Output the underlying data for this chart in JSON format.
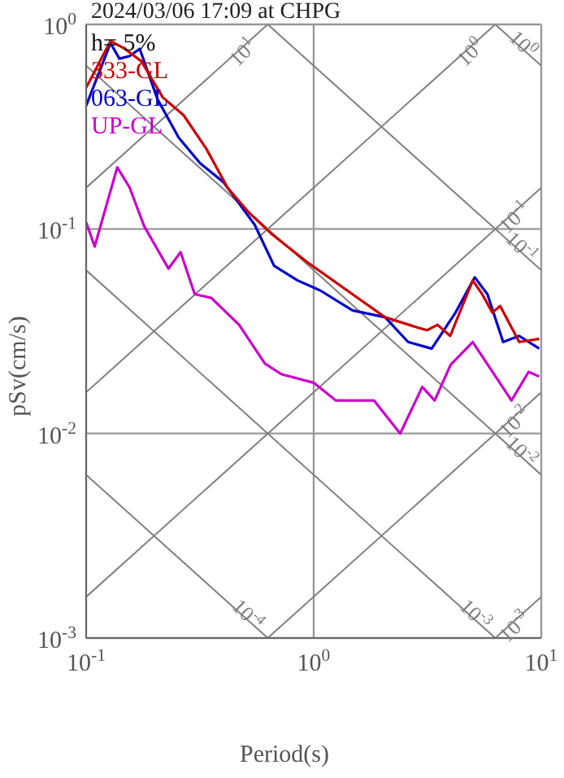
{
  "chart_data": {
    "type": "line",
    "title": "2024/03/06 17:09 at CHPG",
    "xlabel": "Period(s)",
    "ylabel": "pSv(cm/s)",
    "log": "xy",
    "grid": true,
    "legend": "top left",
    "annotations": [
      "h= 5%",
      {
        "text": "10$^{1}$",
        "x": 0.628,
        "y": 1
      },
      {
        "text": "10$^{0}$",
        "x": 6.28,
        "y": 1
      },
      {
        "text": "10$^{-1}$",
        "x": 10,
        "y": 0.159
      },
      {
        "text": "10$^{-2}$",
        "x": 10,
        "y": 0.0159
      },
      {
        "text": "10$^{-3}$",
        "x": 10,
        "y": 0.00159
      },
      {
        "text": "10$^{0}$",
        "x": 10,
        "y": 0.628
      },
      {
        "text": "10$^{-1}$",
        "x": 10,
        "y": 0.0628
      },
      {
        "text": "10$^{-2}$",
        "x": 10,
        "y": 0.00628
      },
      {
        "text": "10$^{-3}$",
        "x": 6.28,
        "y": 0.001
      },
      {
        "text": "10$^{-4}$",
        "x": 0.628,
        "y": 0.001
      }
    ],
    "xlim": [
      0.1,
      10
    ],
    "ylim": [
      0.001,
      1
    ],
    "xticks": [
      {
        "value": 0.1,
        "label": "10$^{-1}$"
      },
      {
        "value": 1,
        "label": "10$^{0}$"
      },
      {
        "value": 10,
        "label": "10$^{1}$"
      }
    ],
    "yticks": [
      {
        "value": 0.001,
        "label": "10$^{-3}$"
      },
      {
        "value": 0.01,
        "label": "10$^{-2}$"
      },
      {
        "value": 0.1,
        "label": "10$^{-1}$"
      },
      {
        "value": 1,
        "label": "10$^{0}$"
      }
    ],
    "series": [
      {
        "name": "333-GL",
        "color": "#cc0000",
        "x": [
          0.1,
          0.128,
          0.148,
          0.175,
          0.217,
          0.268,
          0.337,
          0.42,
          0.52,
          0.65,
          0.95,
          1.48,
          2.06,
          2.85,
          3.15,
          3.5,
          3.98,
          5.0,
          5.5,
          6.1,
          6.6,
          8.0,
          9.8
        ],
        "values": [
          0.49,
          0.83,
          0.76,
          0.66,
          0.44,
          0.36,
          0.247,
          0.158,
          0.12,
          0.095,
          0.068,
          0.048,
          0.037,
          0.033,
          0.032,
          0.034,
          0.03,
          0.056,
          0.048,
          0.039,
          0.042,
          0.028,
          0.029
        ]
      },
      {
        "name": "063-GL",
        "color": "#0000cc",
        "x": [
          0.1,
          0.128,
          0.14,
          0.155,
          0.172,
          0.206,
          0.255,
          0.316,
          0.4,
          0.55,
          0.67,
          0.85,
          1.07,
          1.48,
          2.06,
          2.6,
          3.3,
          4.2,
          5.1,
          5.8,
          6.8,
          8.0,
          9.8
        ],
        "values": [
          0.4,
          0.81,
          0.68,
          0.7,
          0.76,
          0.43,
          0.28,
          0.21,
          0.17,
          0.105,
          0.066,
          0.056,
          0.05,
          0.04,
          0.037,
          0.028,
          0.026,
          0.039,
          0.058,
          0.048,
          0.028,
          0.03,
          0.026
        ]
      },
      {
        "name": "UP-GL",
        "color": "#cc00cc",
        "x": [
          0.1,
          0.109,
          0.137,
          0.155,
          0.18,
          0.23,
          0.26,
          0.3,
          0.355,
          0.47,
          0.61,
          0.72,
          1.0,
          1.25,
          1.84,
          2.4,
          3.0,
          3.4,
          4.0,
          5.0,
          6.3,
          7.4,
          8.8,
          9.8
        ],
        "values": [
          0.108,
          0.082,
          0.2,
          0.16,
          0.103,
          0.064,
          0.077,
          0.048,
          0.046,
          0.034,
          0.022,
          0.0195,
          0.0177,
          0.0145,
          0.0145,
          0.01,
          0.0169,
          0.0145,
          0.0217,
          0.028,
          0.019,
          0.0145,
          0.02,
          0.019
        ]
      },
      {
        "color": "#808080",
        "x": [
          0.1,
          0.628
        ],
        "values": [
          0.159,
          1
        ]
      },
      {
        "color": "#808080",
        "x": [
          0.1,
          6.28
        ],
        "values": [
          0.0159,
          1
        ]
      },
      {
        "color": "#808080",
        "x": [
          0.1,
          10
        ],
        "values": [
          0.00159,
          0.159
        ]
      },
      {
        "color": "#808080",
        "x": [
          0.628,
          10
        ],
        "values": [
          0.001,
          0.0159
        ]
      },
      {
        "color": "#808080",
        "x": [
          6.28,
          10
        ],
        "values": [
          0.001,
          0.00159
        ]
      },
      {
        "color": "#808080",
        "x": [
          6.28,
          10
        ],
        "values": [
          1,
          0.628
        ]
      },
      {
        "color": "#808080",
        "x": [
          0.628,
          10
        ],
        "values": [
          1,
          0.0628
        ]
      },
      {
        "color": "#808080",
        "x": [
          0.1,
          10
        ],
        "values": [
          0.628,
          0.00628
        ]
      },
      {
        "color": "#808080",
        "x": [
          0.1,
          6.28
        ],
        "values": [
          0.0628,
          0.001
        ]
      },
      {
        "color": "#808080",
        "x": [
          0.1,
          0.628
        ],
        "values": [
          0.00628,
          0.001
        ]
      }
    ]
  }
}
